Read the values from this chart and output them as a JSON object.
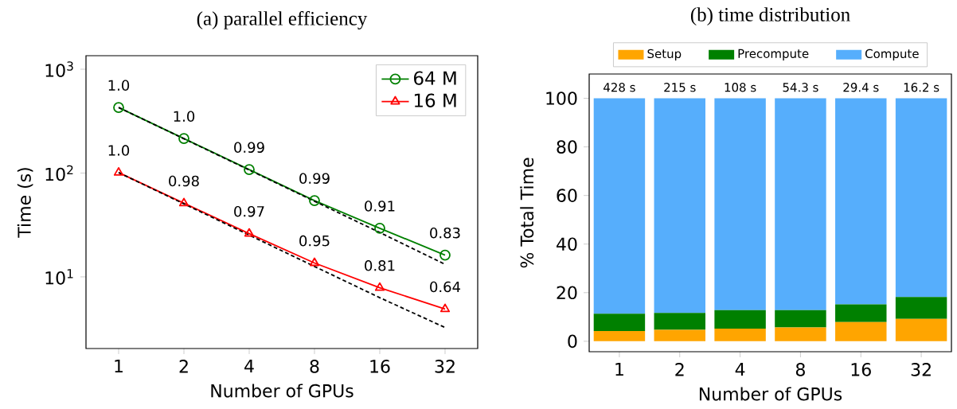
{
  "chart_data": [
    {
      "type": "line",
      "title": "(a) parallel efficiency",
      "xlabel": "Number of GPUs",
      "ylabel": "Time (s)",
      "categories": [
        "1",
        "2",
        "4",
        "8",
        "16",
        "32"
      ],
      "log": true,
      "ylim": [
        2.04,
        1350
      ],
      "yticks": [
        {
          "value": 10,
          "label": "10$^{1}$"
        },
        {
          "value": 100,
          "label": "10$^{2}$"
        },
        {
          "value": 1000,
          "label": "10$^{3}$"
        }
      ],
      "legend": "top right",
      "annotations": [
        {
          "text": "1.0",
          "x": "1",
          "y": 428
        },
        {
          "text": "1.0",
          "x": "2",
          "y": 215
        },
        {
          "text": "0.99",
          "x": "4",
          "y": 108
        },
        {
          "text": "0.99",
          "x": "8",
          "y": 54.3
        },
        {
          "text": "0.91",
          "x": "16",
          "y": 29.4
        },
        {
          "text": "0.83",
          "x": "32",
          "y": 16.2
        },
        {
          "text": "1.0",
          "x": "1",
          "y": 101
        },
        {
          "text": "0.98",
          "x": "2",
          "y": 51.2
        },
        {
          "text": "0.97",
          "x": "4",
          "y": 26.1
        },
        {
          "text": "0.95",
          "x": "8",
          "y": 13.6
        },
        {
          "text": "0.81",
          "x": "16",
          "y": 7.85
        },
        {
          "text": "0.64",
          "x": "32",
          "y": 4.9
        }
      ],
      "series": [
        {
          "name": "64 M",
          "color": "#008000",
          "marker": "circle",
          "values": [
            428,
            215,
            108,
            54.3,
            29.4,
            16.2
          ]
        },
        {
          "name": "16 M",
          "color": "#ff0000",
          "marker": "triangle",
          "values": [
            101,
            51.2,
            26.1,
            13.6,
            7.85,
            4.9
          ]
        },
        {
          "color": "#000000",
          "line_style": "dashed",
          "marker": "none",
          "values": [
            428,
            214,
            107,
            53.5,
            26.75,
            13.2
          ]
        },
        {
          "color": "#000000",
          "line_style": "dashed",
          "marker": "none",
          "values": [
            101,
            50.5,
            25.25,
            12.6,
            6.3,
            3.25
          ]
        }
      ]
    },
    {
      "type": "bar",
      "stacked": true,
      "title": "(b) time distribution",
      "xlabel": "Number of GPUs",
      "ylabel": "% Total Time",
      "categories": [
        "1",
        "2",
        "4",
        "8",
        "16",
        "32"
      ],
      "ylim": [
        -4.3,
        110
      ],
      "yticks": [
        0,
        20,
        40,
        60,
        80,
        100
      ],
      "legend": "top",
      "annotations": [
        {
          "text": "428 s",
          "x": "1",
          "y": 100
        },
        {
          "text": "215 s",
          "x": "2",
          "y": 100
        },
        {
          "text": "108 s",
          "x": "4",
          "y": 100
        },
        {
          "text": "54.3 s",
          "x": "8",
          "y": 100
        },
        {
          "text": "29.4 s",
          "x": "16",
          "y": 100
        },
        {
          "text": "16.2 s",
          "x": "32",
          "y": 100
        }
      ],
      "series": [
        {
          "name": "Setup",
          "color": "#ffa500",
          "values": [
            4.2,
            4.7,
            5.2,
            5.7,
            7.9,
            9.2
          ]
        },
        {
          "name": "Precompute",
          "color": "#008000",
          "values": [
            7.1,
            7.0,
            7.6,
            7.1,
            7.3,
            9.0
          ]
        },
        {
          "name": "Compute",
          "color": "#56aefc",
          "values": [
            88.7,
            88.3,
            87.2,
            87.2,
            84.8,
            81.8
          ]
        }
      ]
    }
  ]
}
